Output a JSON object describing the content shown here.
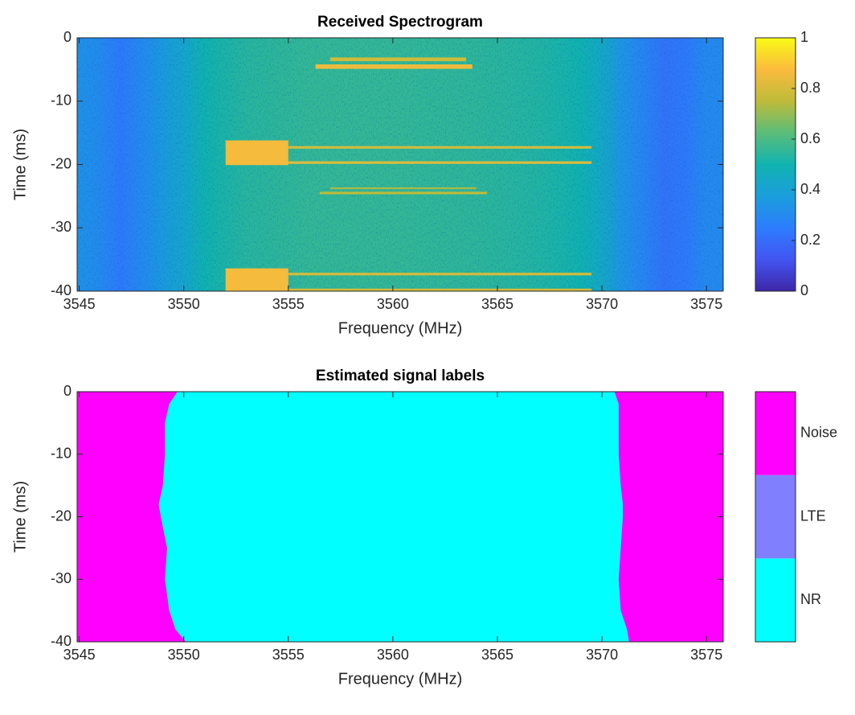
{
  "chart_data": [
    {
      "type": "spectrogram",
      "title": "Received Spectrogram",
      "xlabel": "Frequency (MHz)",
      "ylabel": "Time (ms)",
      "xlim": [
        3544.9,
        3575.8
      ],
      "ylim": [
        -40,
        0
      ],
      "xticks": [
        3545,
        3550,
        3555,
        3560,
        3565,
        3570,
        3575
      ],
      "yticks": [
        0,
        -10,
        -20,
        -30,
        -40
      ],
      "colormap": [
        "#3e26a8",
        "#4355f2",
        "#2c7dfd",
        "#1a9edc",
        "#11b3b0",
        "#5abd79",
        "#bebb39",
        "#fbbb3d",
        "#f9fb15"
      ],
      "clim": [
        0,
        1
      ],
      "cticks": [
        0,
        0.2,
        0.4,
        0.6,
        0.8,
        1
      ],
      "noise_profile": {
        "x": [
          3545,
          3546,
          3547,
          3548,
          3549,
          3550,
          3551,
          3553,
          3556,
          3560,
          3564,
          3567,
          3569,
          3570,
          3571,
          3572,
          3573,
          3574,
          3575
        ],
        "values": [
          0.33,
          0.3,
          0.24,
          0.3,
          0.36,
          0.42,
          0.5,
          0.54,
          0.56,
          0.56,
          0.55,
          0.53,
          0.5,
          0.44,
          0.34,
          0.28,
          0.22,
          0.24,
          0.3
        ]
      },
      "bursts": [
        {
          "t0": -3.1,
          "t1": -3.7,
          "f0": 3557,
          "f1": 3563.5,
          "level": 0.78
        },
        {
          "t0": -4.2,
          "t1": -4.9,
          "f0": 3556.3,
          "f1": 3563.8,
          "level": 0.85
        },
        {
          "t0": -16.2,
          "t1": -20.1,
          "f0": 3552,
          "f1": 3555,
          "level": 0.86
        },
        {
          "t0": -17.1,
          "t1": -17.5,
          "f0": 3555,
          "f1": 3569.5,
          "level": 0.8
        },
        {
          "t0": -19.5,
          "t1": -19.9,
          "f0": 3555,
          "f1": 3569.5,
          "level": 0.82
        },
        {
          "t0": -23.6,
          "t1": -23.9,
          "f0": 3557,
          "f1": 3564,
          "level": 0.72
        },
        {
          "t0": -24.3,
          "t1": -24.7,
          "f0": 3556.5,
          "f1": 3564.5,
          "level": 0.75
        },
        {
          "t0": -36.4,
          "t1": -40,
          "f0": 3552,
          "f1": 3555,
          "level": 0.86
        },
        {
          "t0": -37.1,
          "t1": -37.5,
          "f0": 3555,
          "f1": 3569.5,
          "level": 0.8
        },
        {
          "t0": -39.6,
          "t1": -40,
          "f0": 3555,
          "f1": 3569.5,
          "level": 0.8
        }
      ]
    },
    {
      "type": "label_map",
      "title": "Estimated signal labels",
      "xlabel": "Frequency (MHz)",
      "ylabel": "Time (ms)",
      "xlim": [
        3544.9,
        3575.8
      ],
      "ylim": [
        -40,
        0
      ],
      "xticks": [
        3545,
        3550,
        3555,
        3560,
        3565,
        3570,
        3575
      ],
      "yticks": [
        0,
        -10,
        -20,
        -30,
        -40
      ],
      "classes": [
        {
          "name": "NR",
          "color": "#00ffff"
        },
        {
          "name": "LTE",
          "color": "#8080ff"
        },
        {
          "name": "Noise",
          "color": "#ff00ff"
        }
      ],
      "background_class": 2,
      "region_class": 0,
      "region_time": [
        0,
        -2,
        -5,
        -10,
        -15,
        -18,
        -20,
        -25,
        -30,
        -35,
        -38,
        -40
      ],
      "region_left": [
        3549.7,
        3549.3,
        3549.1,
        3549.1,
        3549,
        3548.8,
        3548.9,
        3549.2,
        3549.1,
        3549.3,
        3549.6,
        3550.1
      ],
      "region_right": [
        3570.6,
        3570.8,
        3570.8,
        3570.8,
        3570.9,
        3571,
        3571,
        3570.9,
        3570.8,
        3570.9,
        3571.2,
        3571.3
      ]
    }
  ]
}
